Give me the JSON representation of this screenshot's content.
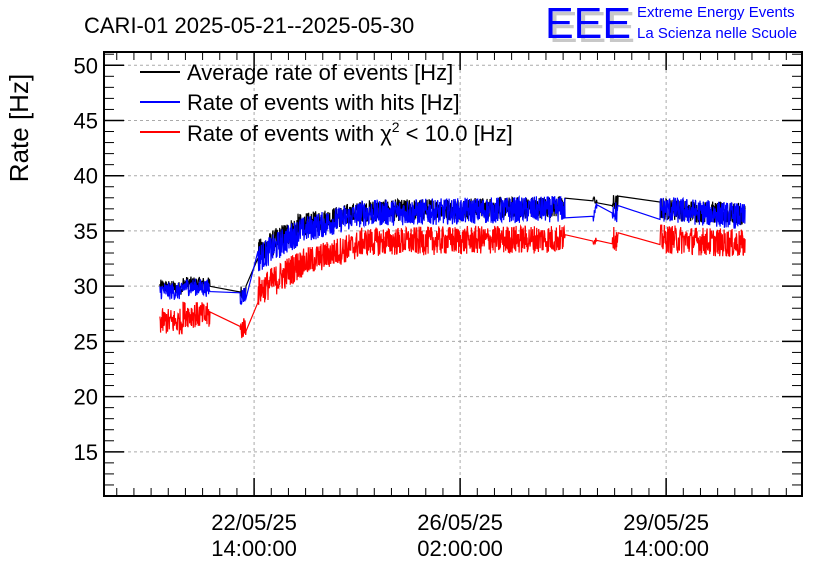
{
  "chart_data": {
    "type": "line",
    "title": "CARI-01 2025-05-21--2025-05-30",
    "xlabel": "",
    "ylabel": "Rate [Hz]",
    "x_units": "hours from start of axis",
    "xlim": [
      0,
      284.6
    ],
    "ylim": [
      11,
      51.2
    ],
    "grid": true,
    "legend_placement": "top-left",
    "yticks": [
      15,
      20,
      25,
      30,
      35,
      40,
      45,
      50
    ],
    "xticks": [
      {
        "t": 61.2,
        "line1": "22/05/25",
        "line2": "14:00:00"
      },
      {
        "t": 145.2,
        "line1": "26/05/25",
        "line2": "02:00:00"
      },
      {
        "t": 229.2,
        "line1": "29/05/25",
        "line2": "14:00:00"
      }
    ],
    "series": [
      {
        "name": "Average rate of events [Hz]",
        "color": "#000000",
        "segments": [
          {
            "t": [
              22.8,
              32.2
            ],
            "v": [
              30.0,
              29.8
            ],
            "spread": 0.6
          },
          {
            "t": [
              32.2,
              43.2
            ],
            "v": [
              30.3,
              30.2
            ],
            "spread": 0.6
          },
          {
            "t": [
              55.5,
              57.9
            ],
            "v": [
              29.5,
              29.5
            ],
            "spread": 0.6
          },
          {
            "t": [
              62.8,
              79.9
            ],
            "v": [
              33.0,
              35.5
            ],
            "spread": 1.2
          },
          {
            "t": [
              79.9,
              104.4
            ],
            "v": [
              35.5,
              36.7
            ],
            "spread": 1.0
          },
          {
            "t": [
              104.4,
              188.0
            ],
            "v": [
              36.8,
              37.2
            ],
            "spread": 1.0
          },
          {
            "t": [
              199.4,
              201.0
            ],
            "v": [
              38.0,
              37.5
            ],
            "spread": 0.3
          },
          {
            "t": [
              207.2,
              209.6
            ],
            "v": [
              37.5,
              37.5
            ],
            "spread": 0.8
          },
          {
            "t": [
              226.7,
              261.4
            ],
            "v": [
              37.0,
              36.5
            ],
            "spread": 1.0
          }
        ]
      },
      {
        "name": "Rate of events with hits [Hz]",
        "color": "#0000ff",
        "segments": [
          {
            "t": [
              22.8,
              32.2
            ],
            "v": [
              29.6,
              29.5
            ],
            "spread": 0.8
          },
          {
            "t": [
              32.2,
              43.2
            ],
            "v": [
              30.0,
              29.8
            ],
            "spread": 0.8
          },
          {
            "t": [
              55.5,
              57.9
            ],
            "v": [
              29.0,
              29.3
            ],
            "spread": 0.8
          },
          {
            "t": [
              62.8,
              79.9
            ],
            "v": [
              32.5,
              35.0
            ],
            "spread": 1.3
          },
          {
            "t": [
              79.9,
              104.4
            ],
            "v": [
              35.0,
              36.5
            ],
            "spread": 1.2
          },
          {
            "t": [
              104.4,
              188.0
            ],
            "v": [
              36.6,
              37.0
            ],
            "spread": 1.2
          },
          {
            "t": [
              199.4,
              201.0
            ],
            "v": [
              36.0,
              37.5
            ],
            "spread": 0.4
          },
          {
            "t": [
              207.2,
              209.6
            ],
            "v": [
              37.0,
              36.5
            ],
            "spread": 1.0
          },
          {
            "t": [
              226.7,
              261.4
            ],
            "v": [
              37.0,
              36.3
            ],
            "spread": 1.2
          }
        ]
      },
      {
        "name": "Rate of events with χ2 < 10.0 [Hz]",
        "color": "#ff0000",
        "segments": [
          {
            "t": [
              22.8,
              32.2
            ],
            "v": [
              26.8,
              26.8
            ],
            "spread": 1.2
          },
          {
            "t": [
              32.2,
              43.2
            ],
            "v": [
              27.5,
              27.3
            ],
            "spread": 1.2
          },
          {
            "t": [
              55.5,
              57.9
            ],
            "v": [
              26.0,
              26.5
            ],
            "spread": 1.0
          },
          {
            "t": [
              62.8,
              79.9
            ],
            "v": [
              29.5,
              32.0
            ],
            "spread": 1.4
          },
          {
            "t": [
              79.9,
              104.4
            ],
            "v": [
              32.0,
              33.8
            ],
            "spread": 1.3
          },
          {
            "t": [
              104.4,
              188.0
            ],
            "v": [
              34.0,
              34.3
            ],
            "spread": 1.3
          },
          {
            "t": [
              199.4,
              201.0
            ],
            "v": [
              34.0,
              34.3
            ],
            "spread": 0.3
          },
          {
            "t": [
              207.2,
              209.6
            ],
            "v": [
              34.5,
              34.0
            ],
            "spread": 1.0
          },
          {
            "t": [
              226.7,
              261.4
            ],
            "v": [
              34.3,
              33.8
            ],
            "spread": 1.3
          }
        ]
      }
    ]
  },
  "legend": {
    "item0": "Average rate of events [Hz]",
    "item1": "Rate of events with hits [Hz]",
    "item2_prefix": "Rate of events with χ",
    "item2_sup": "2",
    "item2_suffix": " < 10.0 [Hz]"
  },
  "logo": {
    "mark": "EEE",
    "line1": "Extreme Energy Events",
    "line2": "La Scienza nelle Scuole",
    "color": "#0000ff"
  }
}
